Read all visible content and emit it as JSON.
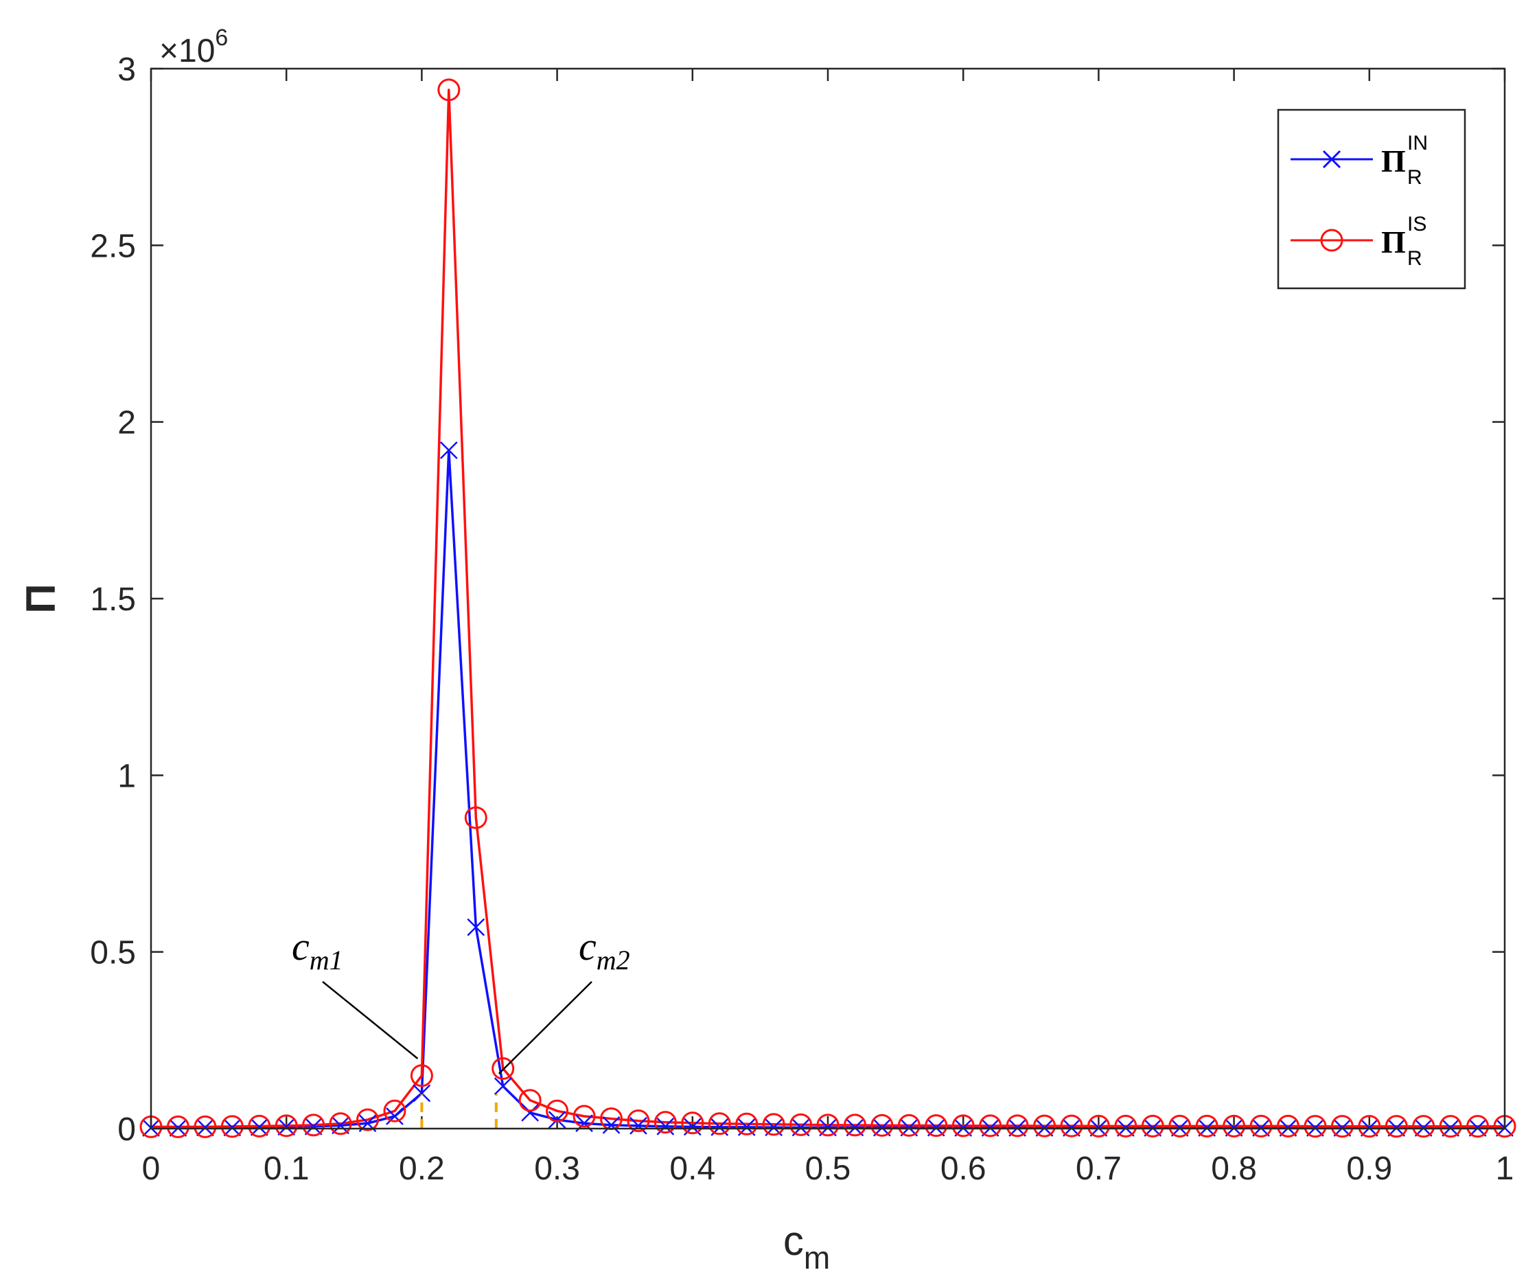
{
  "chart_data": {
    "type": "line",
    "xlabel": "c",
    "xlabel_sub": "m",
    "ylabel": "Π",
    "y_multiplier": "×10",
    "y_multiplier_exp": "6",
    "xlim": [
      0,
      1
    ],
    "ylim": [
      0,
      3000000
    ],
    "xticks": [
      0,
      0.1,
      0.2,
      0.3,
      0.4,
      0.5,
      0.6,
      0.7,
      0.8,
      0.9,
      1
    ],
    "xtick_labels": [
      "0",
      "0.1",
      "0.2",
      "0.3",
      "0.4",
      "0.5",
      "0.6",
      "0.7",
      "0.8",
      "0.9",
      "1"
    ],
    "yticks": [
      0,
      500000,
      1000000,
      1500000,
      2000000,
      2500000,
      3000000
    ],
    "ytick_labels": [
      "0",
      "0.5",
      "1",
      "1.5",
      "2",
      "2.5",
      "3"
    ],
    "grid": false,
    "legend_position": "top-right",
    "x": [
      0,
      0.02,
      0.04,
      0.06,
      0.08,
      0.1,
      0.12,
      0.14,
      0.16,
      0.18,
      0.2,
      0.22,
      0.24,
      0.26,
      0.28,
      0.3,
      0.32,
      0.34,
      0.36,
      0.38,
      0.4,
      0.42,
      0.44,
      0.46,
      0.48,
      0.5,
      0.52,
      0.54,
      0.56,
      0.58,
      0.6,
      0.62,
      0.64,
      0.66,
      0.68,
      0.7,
      0.72,
      0.74,
      0.76,
      0.78,
      0.8,
      0.82,
      0.84,
      0.86,
      0.88,
      0.9,
      0.92,
      0.94,
      0.96,
      0.98,
      1
    ],
    "series": [
      {
        "name": "Π",
        "name_sub": "R",
        "name_sup": "IN",
        "color": "#1010ff",
        "marker": "x",
        "values": [
          2000,
          2000,
          3000,
          3000,
          4000,
          5000,
          6000,
          9000,
          15000,
          35000,
          100000,
          1920000,
          570000,
          120000,
          45000,
          25000,
          15000,
          10000,
          8000,
          6000,
          5000,
          4000,
          4000,
          3500,
          3000,
          3000,
          3000,
          2500,
          2500,
          2500,
          2000,
          2000,
          2000,
          2000,
          2000,
          2000,
          2000,
          2000,
          2000,
          2000,
          2000,
          2000,
          2000,
          2000,
          2000,
          2000,
          2000,
          2000,
          2000,
          2000,
          2000
        ]
      },
      {
        "name": "Π",
        "name_sub": "R",
        "name_sup": "IS",
        "color": "#ff1010",
        "marker": "o",
        "values": [
          5000,
          5000,
          5000,
          6000,
          7000,
          8000,
          10000,
          14000,
          25000,
          50000,
          150000,
          2940000,
          880000,
          170000,
          80000,
          50000,
          35000,
          28000,
          22000,
          18000,
          16000,
          14000,
          13000,
          12000,
          11000,
          10000,
          10000,
          9000,
          9000,
          8500,
          8000,
          8000,
          8000,
          7500,
          7500,
          7000,
          7000,
          7000,
          7000,
          7000,
          7000,
          7000,
          7000,
          6500,
          6500,
          6500,
          6500,
          6500,
          6500,
          6500,
          6500
        ]
      }
    ],
    "annotations": [
      {
        "base": "c",
        "sub": "m1",
        "x_value": 0.2
      },
      {
        "base": "c",
        "sub": "m2",
        "x_value": 0.255
      }
    ]
  }
}
